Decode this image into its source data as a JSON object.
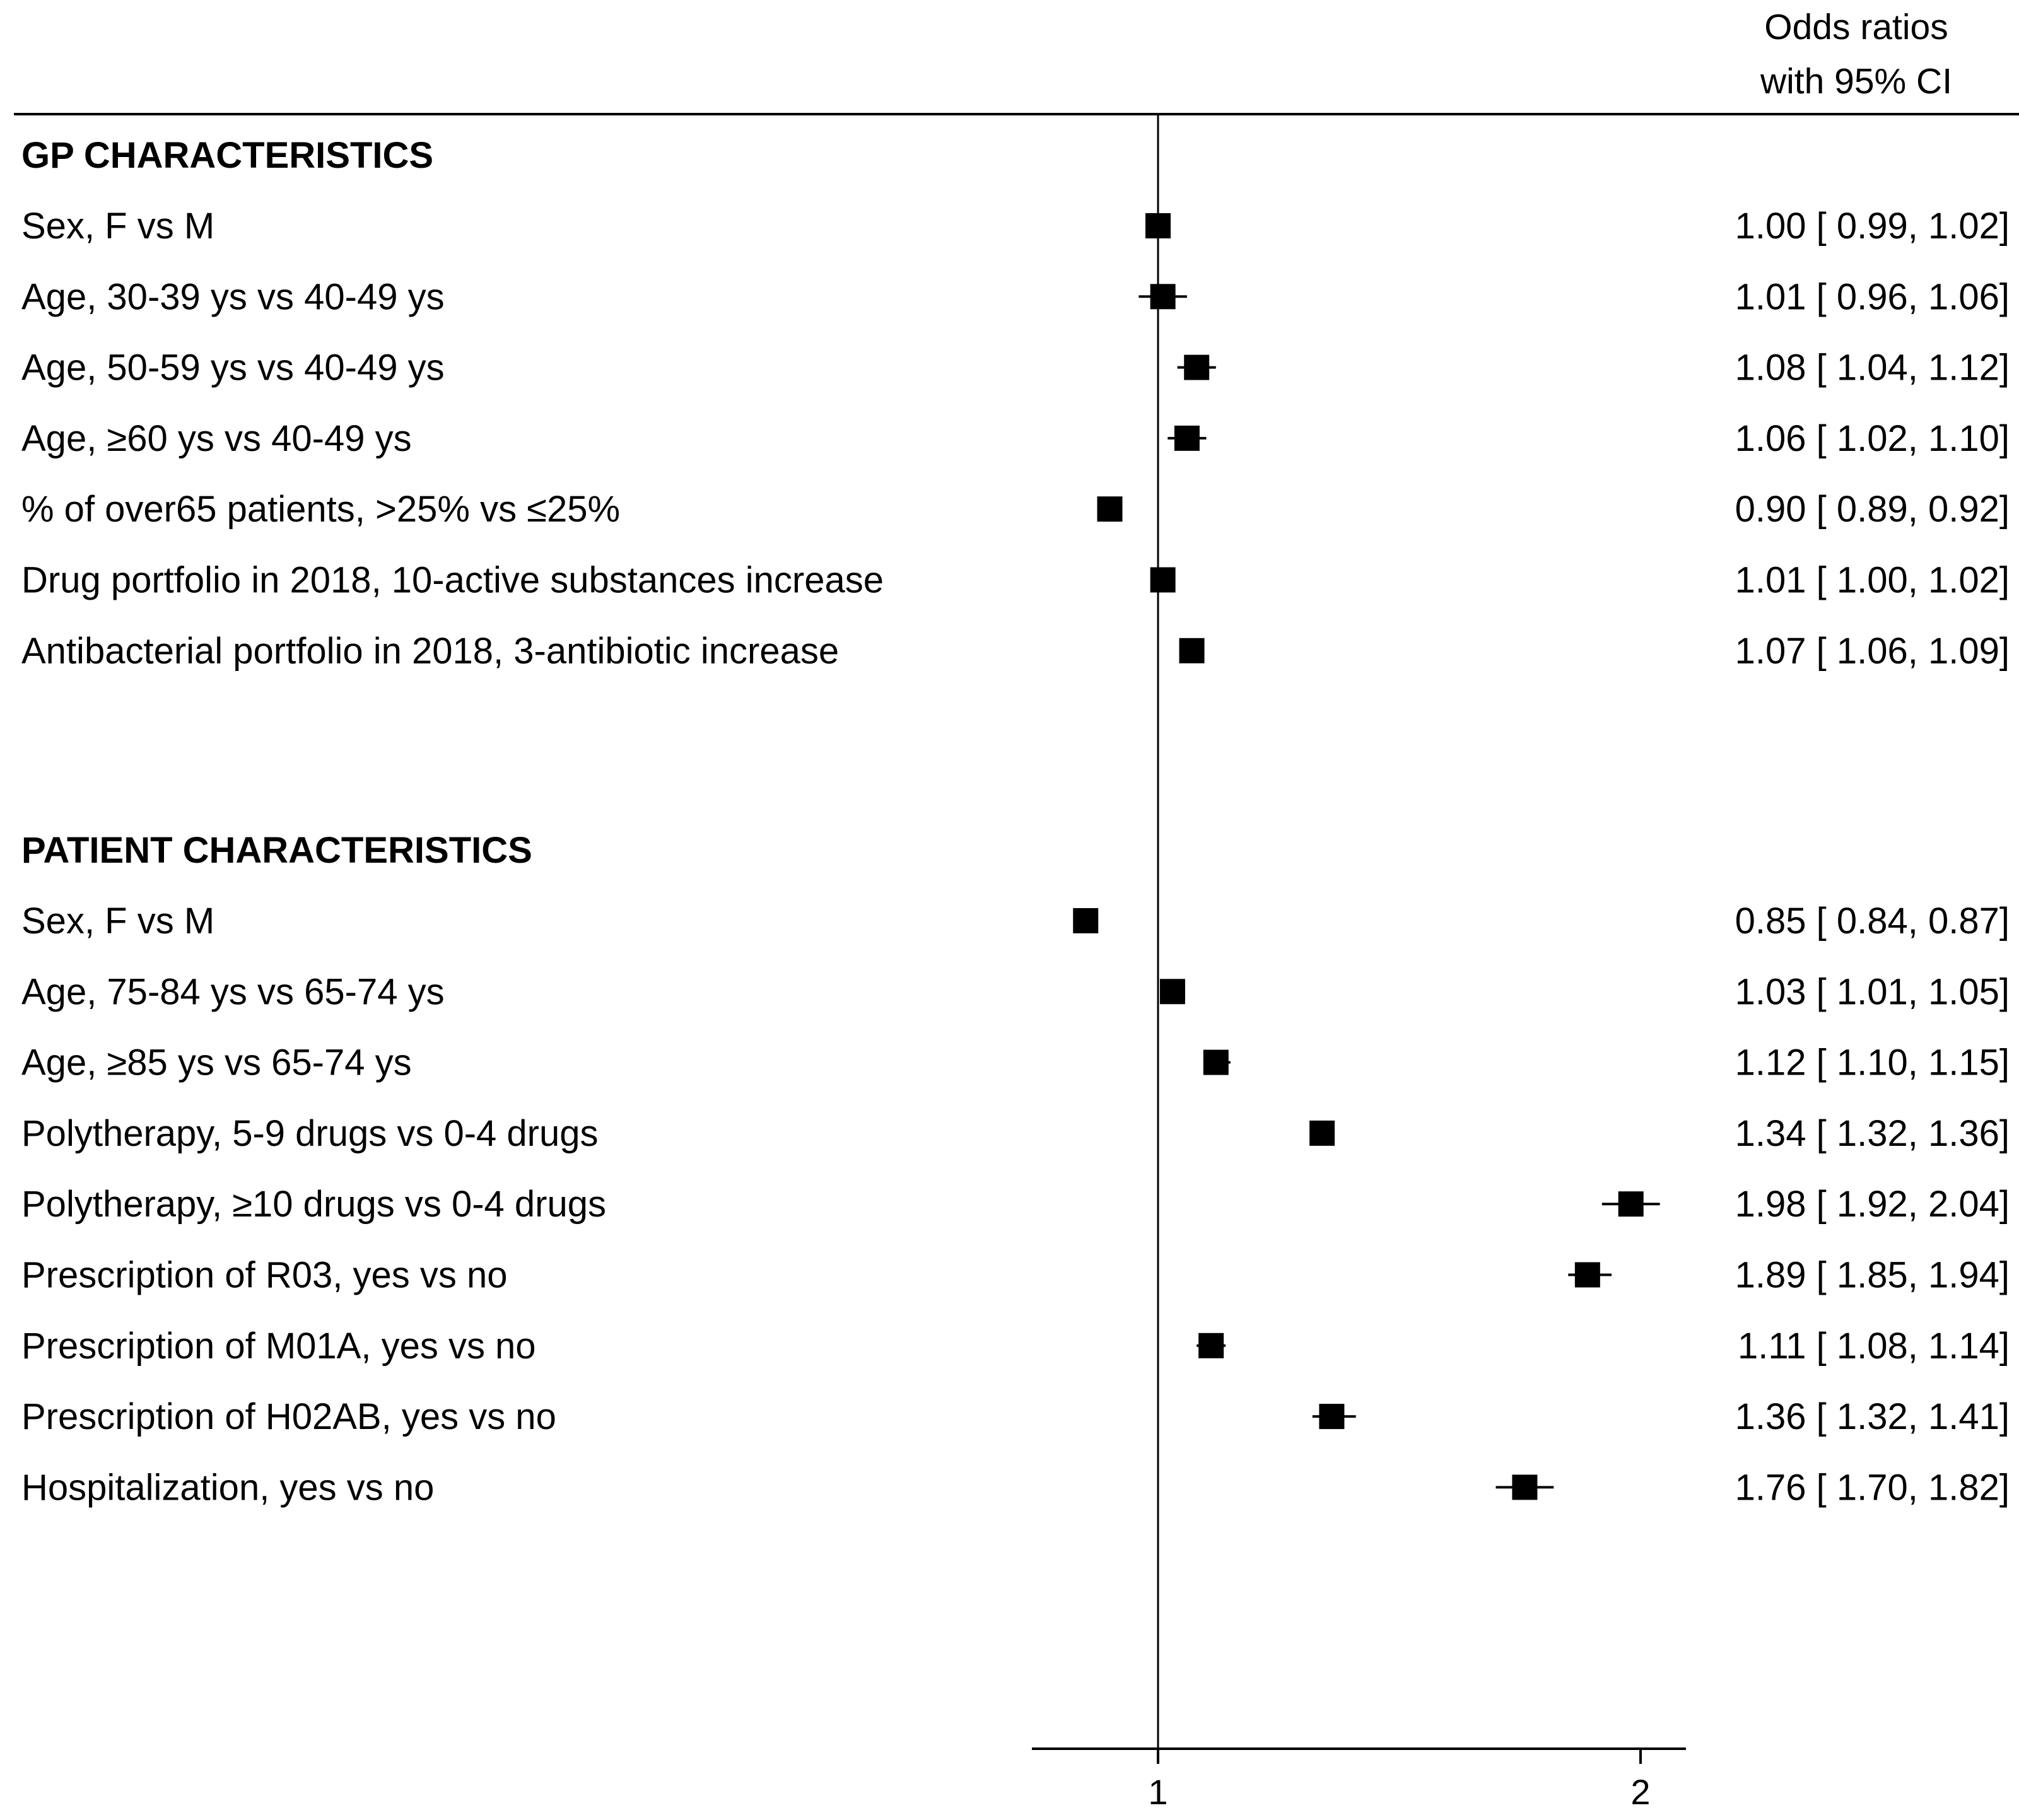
{
  "chart_data": {
    "type": "forest",
    "header": [
      "Odds ratios",
      "with 95% CI"
    ],
    "x_axis": {
      "ticks": [
        1,
        2
      ],
      "range": [
        0.74,
        2.09
      ],
      "reference_line": 1
    },
    "sections": [
      {
        "title": "GP CHARACTERISTICS",
        "rows": [
          {
            "label": "Sex, F vs M",
            "or": 1.0,
            "lo": 0.99,
            "hi": 1.02,
            "ci_text": "1.00 [ 0.99,  1.02]"
          },
          {
            "label": "Age, 30-39 ys vs 40-49 ys",
            "or": 1.01,
            "lo": 0.96,
            "hi": 1.06,
            "ci_text": "1.01 [ 0.96,  1.06]"
          },
          {
            "label": "Age, 50-59 ys vs 40-49 ys",
            "or": 1.08,
            "lo": 1.04,
            "hi": 1.12,
            "ci_text": "1.08 [ 1.04,  1.12]"
          },
          {
            "label": "Age, ≥60 ys vs 40-49 ys",
            "or": 1.06,
            "lo": 1.02,
            "hi": 1.1,
            "ci_text": "1.06 [ 1.02,  1.10]"
          },
          {
            "label": "% of over65 patients, >25% vs ≤25%",
            "or": 0.9,
            "lo": 0.89,
            "hi": 0.92,
            "ci_text": "0.90 [ 0.89,  0.92]"
          },
          {
            "label": "Drug portfolio in 2018, 10-active substances increase",
            "or": 1.01,
            "lo": 1.0,
            "hi": 1.02,
            "ci_text": "1.01 [ 1.00,  1.02]"
          },
          {
            "label": "Antibacterial portfolio in 2018, 3-antibiotic increase",
            "or": 1.07,
            "lo": 1.06,
            "hi": 1.09,
            "ci_text": "1.07 [ 1.06,  1.09]"
          }
        ]
      },
      {
        "title": "PATIENT CHARACTERISTICS",
        "rows": [
          {
            "label": "Sex, F vs M",
            "or": 0.85,
            "lo": 0.84,
            "hi": 0.87,
            "ci_text": "0.85 [ 0.84,  0.87]"
          },
          {
            "label": "Age, 75-84 ys vs 65-74 ys",
            "or": 1.03,
            "lo": 1.01,
            "hi": 1.05,
            "ci_text": "1.03 [ 1.01,  1.05]"
          },
          {
            "label": "Age, ≥85 ys vs 65-74 ys",
            "or": 1.12,
            "lo": 1.1,
            "hi": 1.15,
            "ci_text": "1.12 [ 1.10,  1.15]"
          },
          {
            "label": "Polytherapy, 5-9 drugs vs 0-4 drugs",
            "or": 1.34,
            "lo": 1.32,
            "hi": 1.36,
            "ci_text": "1.34 [ 1.32,  1.36]"
          },
          {
            "label": "Polytherapy, ≥10 drugs vs 0-4 drugs",
            "or": 1.98,
            "lo": 1.92,
            "hi": 2.04,
            "ci_text": "1.98 [ 1.92,  2.04]"
          },
          {
            "label": "Prescription of R03, yes vs no",
            "or": 1.89,
            "lo": 1.85,
            "hi": 1.94,
            "ci_text": "1.89 [ 1.85,  1.94]"
          },
          {
            "label": "Prescription of M01A, yes vs no",
            "or": 1.11,
            "lo": 1.08,
            "hi": 1.14,
            "ci_text": "1.11 [ 1.08,  1.14]"
          },
          {
            "label": "Prescription of H02AB, yes vs no",
            "or": 1.36,
            "lo": 1.32,
            "hi": 1.41,
            "ci_text": "1.36 [ 1.32,  1.41]"
          },
          {
            "label": "Hospitalization, yes vs no",
            "or": 1.76,
            "lo": 1.7,
            "hi": 1.82,
            "ci_text": "1.76 [ 1.70,  1.82]"
          }
        ]
      }
    ]
  }
}
